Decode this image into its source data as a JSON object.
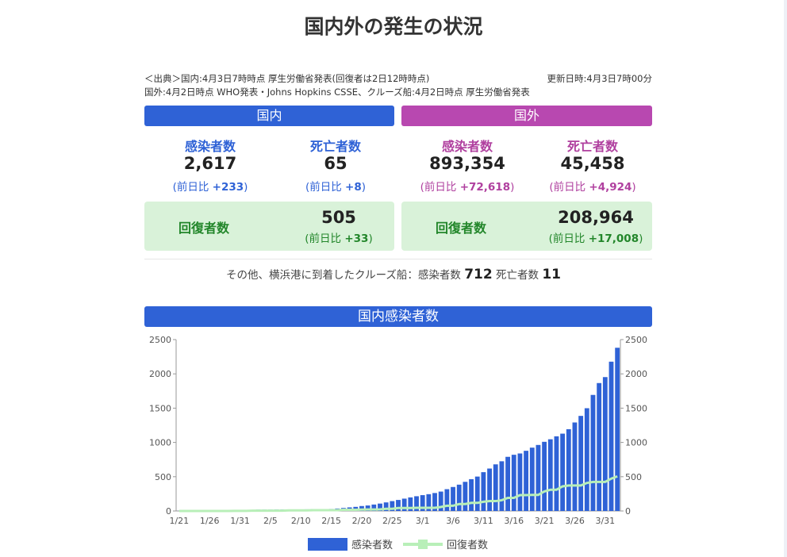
{
  "header": {
    "title": "国内外の発生の状況"
  },
  "source": {
    "line1": "＜出典＞国内:4月3日7時時点 厚生労働省発表(回復者は2日12時時点)",
    "updated": "更新日時:4月3日7時00分",
    "line2": "国外:4月2日時点 WHO発表・Johns Hopkins CSSE、クルーズ船:4月2日時点 厚生労働省発表"
  },
  "domestic": {
    "label": "国内",
    "infected": {
      "label": "感染者数",
      "value": "2,617",
      "prefix": "(前日比",
      "diff": "+233",
      "suffix": ")"
    },
    "deaths": {
      "label": "死亡者数",
      "value": "65",
      "prefix": "(前日比",
      "diff": "+8",
      "suffix": ")"
    },
    "recovered": {
      "label": "回復者数",
      "value": "505",
      "prefix": "(前日比",
      "diff": "+33",
      "suffix": ")"
    }
  },
  "overseas": {
    "label": "国外",
    "infected": {
      "label": "感染者数",
      "value": "893,354",
      "prefix": "(前日比",
      "diff": "+72,618",
      "suffix": ")"
    },
    "deaths": {
      "label": "死亡者数",
      "value": "45,458",
      "prefix": "(前日比",
      "diff": "+4,924",
      "suffix": ")"
    },
    "recovered": {
      "label": "回復者数",
      "value": "208,964",
      "prefix": "(前日比",
      "diff": "+17,008",
      "suffix": ")"
    }
  },
  "cruise": {
    "text": "その他、横浜港に到着したクルーズ船：感染者数",
    "infected": "712",
    "deaths_label": "死亡者数",
    "deaths": "11"
  },
  "chart_data": {
    "type": "bar",
    "title": "国内感染者数",
    "categories": [
      "1/21",
      null,
      null,
      null,
      null,
      "1/26",
      null,
      null,
      null,
      null,
      "1/31",
      null,
      null,
      null,
      null,
      "2/5",
      null,
      null,
      null,
      null,
      "2/10",
      null,
      null,
      null,
      null,
      "2/15",
      null,
      null,
      null,
      null,
      "2/20",
      null,
      null,
      null,
      null,
      "2/25",
      null,
      null,
      null,
      null,
      "3/1",
      null,
      null,
      null,
      null,
      "3/6",
      null,
      null,
      null,
      null,
      "3/11",
      null,
      null,
      null,
      null,
      "3/16",
      null,
      null,
      null,
      null,
      "3/21",
      null,
      null,
      null,
      null,
      "3/26",
      null,
      null,
      null,
      null,
      "3/31",
      null,
      null
    ],
    "series": [
      {
        "name": "感染者数",
        "color": "#2f62d6",
        "values": [
          1,
          1,
          1,
          1,
          2,
          4,
          4,
          7,
          7,
          11,
          14,
          17,
          17,
          20,
          20,
          20,
          22,
          22,
          22,
          22,
          23,
          24,
          26,
          26,
          28,
          30,
          36,
          44,
          52,
          60,
          72,
          80,
          94,
          108,
          125,
          144,
          161,
          180,
          198,
          215,
          231,
          245,
          262,
          283,
          318,
          350,
          384,
          425,
          464,
          502,
          566,
          619,
          680,
          725,
          790,
          820,
          839,
          878,
          924,
          963,
          1009,
          1046,
          1089,
          1128,
          1193,
          1291,
          1387,
          1499,
          1693,
          1866,
          1953,
          2178,
          2381
        ]
      },
      {
        "name": "回復者数",
        "color": "#b8efb8",
        "type": "line",
        "axis": "y2",
        "values": [
          0,
          0,
          0,
          0,
          0,
          0,
          0,
          0,
          0,
          1,
          1,
          1,
          4,
          4,
          4,
          4,
          4,
          4,
          9,
          9,
          9,
          9,
          12,
          12,
          12,
          12,
          12,
          18,
          18,
          18,
          20,
          22,
          22,
          23,
          32,
          32,
          43,
          43,
          43,
          46,
          46,
          46,
          46,
          58,
          76,
          76,
          101,
          101,
          118,
          118,
          135,
          144,
          144,
          157,
          191,
          191,
          232,
          232,
          235,
          235,
          285,
          310,
          310,
          359,
          372,
          372,
          372,
          409,
          424,
          424,
          424,
          472,
          505
        ]
      }
    ],
    "ylim": [
      0,
      2500
    ],
    "yticks": [
      0,
      500,
      1000,
      1500,
      2000,
      2500
    ],
    "y2lim": [
      0,
      2500
    ],
    "y2ticks": [
      0,
      500,
      1000,
      1500,
      2000,
      2500
    ]
  }
}
